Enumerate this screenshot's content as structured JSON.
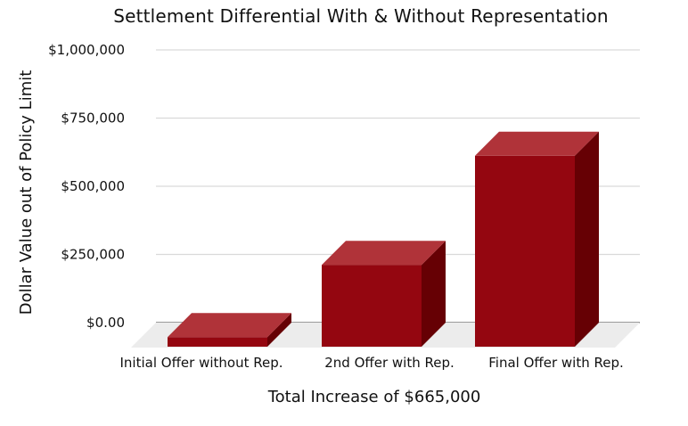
{
  "chart_data": {
    "type": "bar",
    "title": "Settlement Differential With & Without Representation",
    "xlabel": "Total Increase of $665,000",
    "ylabel": "Dollar Value out of Policy Limit",
    "categories": [
      "Initial Offer without Rep.",
      "2nd Offer with Rep.",
      "Final Offer with Rep."
    ],
    "series": [
      {
        "values": [
          35000,
          300000,
          700000
        ]
      }
    ],
    "yticks": [
      {
        "value": 0,
        "label": "$0.00"
      },
      {
        "value": 250000,
        "label": "$250,000"
      },
      {
        "value": 500000,
        "label": "$500,000"
      },
      {
        "value": 750000,
        "label": "$750,000"
      },
      {
        "value": 1000000,
        "label": "$1,000,000"
      }
    ],
    "ylim": [
      0,
      1000000
    ],
    "grid": true,
    "style": "3d",
    "colors": {
      "front": "#940610",
      "top": "#b03339",
      "side": "#660004",
      "floor": "#ececec",
      "grid": "#d9d9d9",
      "baseline": "#9a9a9a"
    }
  }
}
